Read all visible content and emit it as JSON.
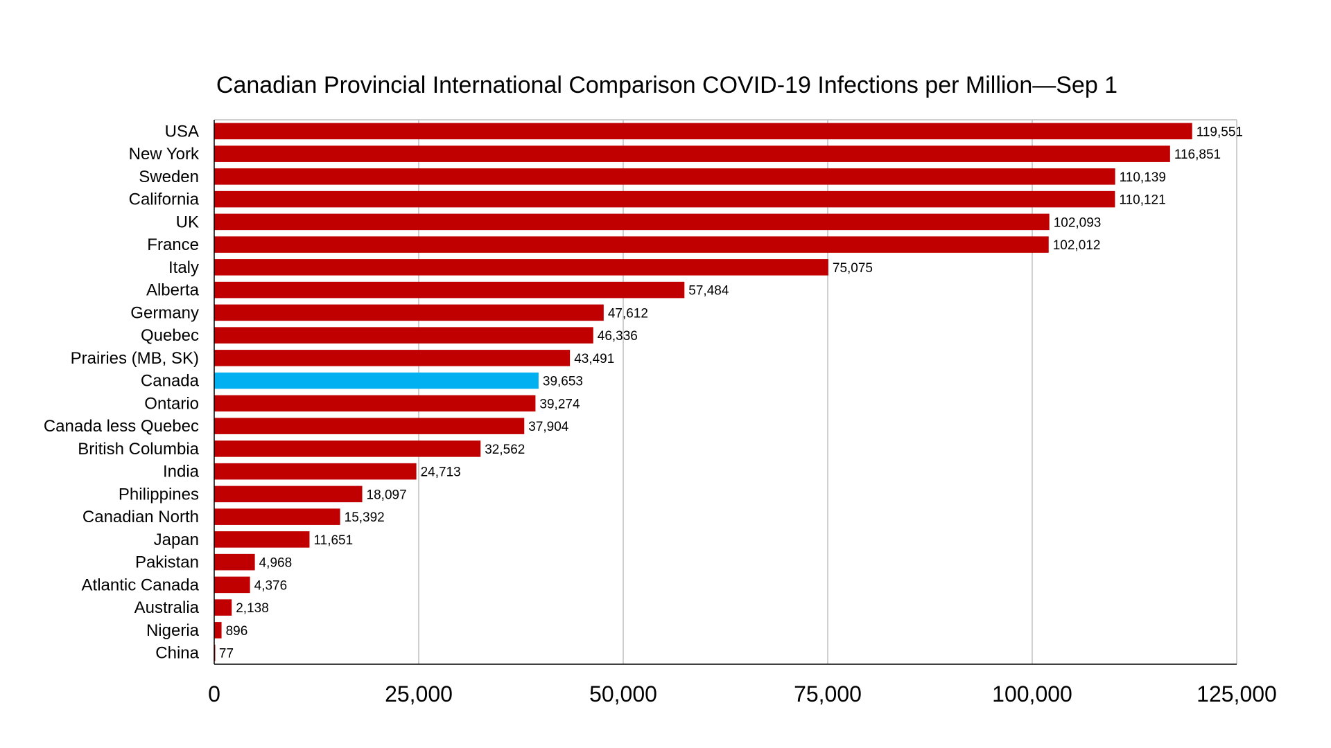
{
  "chart_data": {
    "type": "bar",
    "orientation": "horizontal",
    "title": "Canadian Provincial International Comparison COVID-19 Infections per Million—Sep 1",
    "xlabel": "",
    "ylabel": "",
    "xlim": [
      0,
      125000
    ],
    "x_ticks": [
      0,
      25000,
      50000,
      75000,
      100000,
      125000
    ],
    "x_tick_labels": [
      "0",
      "25,000",
      "50,000",
      "75,000",
      "100,000",
      "125,000"
    ],
    "grid": "vertical",
    "categories": [
      "USA",
      "New York",
      "Sweden",
      "California",
      "UK",
      "France",
      "Italy",
      "Alberta",
      "Germany",
      "Quebec",
      "Prairies (MB, SK)",
      "Canada",
      "Ontario",
      "Canada less Quebec",
      "British Columbia",
      "India",
      "Philippines",
      "Canadian North",
      "Japan",
      "Pakistan",
      "Atlantic Canada",
      "Australia",
      "Nigeria",
      "China"
    ],
    "values": [
      119551,
      116851,
      110139,
      110121,
      102093,
      102012,
      75075,
      57484,
      47612,
      46336,
      43491,
      39653,
      39274,
      37904,
      32562,
      24713,
      18097,
      15392,
      11651,
      4968,
      4376,
      2138,
      896,
      77
    ],
    "value_labels": [
      "119,551",
      "116,851",
      "110,139",
      "110,121",
      "102,093",
      "102,012",
      "75,075",
      "57,484",
      "47,612",
      "46,336",
      "43,491",
      "39,653",
      "39,274",
      "37,904",
      "32,562",
      "24,713",
      "18,097",
      "15,392",
      "11,651",
      "4,968",
      "4,376",
      "2,138",
      "896",
      "77"
    ],
    "colors": {
      "default": "#c00000",
      "highlight": "#00b0f0",
      "grid": "#bfbfbf",
      "axis": "#000000"
    },
    "highlight_category": "Canada"
  }
}
